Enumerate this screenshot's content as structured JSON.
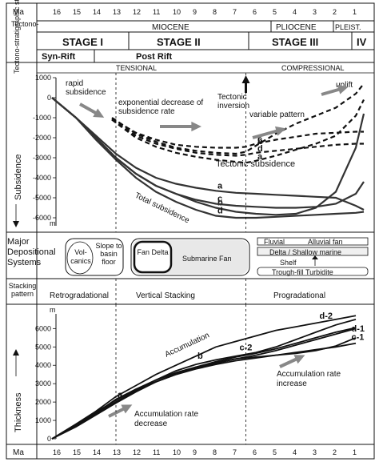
{
  "top": {
    "axis_unit_left": "Ma",
    "ma_ticks": [
      "16",
      "15",
      "14",
      "13",
      "12",
      "11",
      "10",
      "9",
      "8",
      "7",
      "6",
      "5",
      "4",
      "3",
      "2",
      "1"
    ],
    "epochs": [
      "MIOCENE",
      "PLIOCENE",
      "PLEIST."
    ],
    "row_label": "Tectono-stratigraphic stage",
    "stages": [
      "STAGE I",
      "STAGE II",
      "STAGE III",
      "IV"
    ],
    "rift": [
      "Syn-Rift",
      "Post Rift"
    ]
  },
  "subsidence": {
    "ylabel": "Subsidence",
    "unit": "m",
    "regimes": [
      "TENSIONAL",
      "COMPRESSIONAL"
    ],
    "annotations": {
      "rapid": "rapid subsidence",
      "expo": "exponential decrease of subsidence rate",
      "inversion": "Tectonic inversion",
      "variable": "variable pattern",
      "uplift": "uplift",
      "tectonic": "Tectonic subsidence",
      "total": "Total subsidence"
    }
  },
  "depositional": {
    "label": "Major Depositional Systems",
    "volcanics": "Vol-canics",
    "slope": "Slope to basin floor",
    "fan_delta": "Fan Delta",
    "submarine_fan": "Submarine Fan",
    "fluvial": "Fluvial",
    "alluvial": "Alluvial fan",
    "delta": "Delta / Shallow marine",
    "shelf": "Shelf",
    "trough": "Trough-fill Turbidite"
  },
  "stacking": {
    "label": "Stacking pattern",
    "phases": [
      "Retrogradational",
      "Vertical Stacking",
      "Progradational"
    ]
  },
  "thickness": {
    "ylabel": "Thickness",
    "unit": "m",
    "accumulation": "Accumulation",
    "decrease": "Accumulation rate decrease",
    "increase": "Accumulation rate increase"
  },
  "bottom": {
    "axis_unit_left": "Ma"
  },
  "chart_data": [
    {
      "type": "line",
      "title": "",
      "xlabel": "Ma",
      "ylabel": "Subsidence (m)",
      "xlim": [
        16.6,
        0.6
      ],
      "ylim": [
        -6400,
        1000
      ],
      "yticks": [
        1000,
        0,
        -1000,
        -2000,
        -3000,
        -4000,
        -5000,
        -6000
      ],
      "tectonic_series": [
        {
          "name": "a",
          "x": [
            13.2,
            12,
            11,
            10,
            9,
            8,
            7,
            6.5,
            6,
            5,
            4,
            3,
            2,
            1,
            0.6
          ],
          "y": [
            -1100,
            -2000,
            -2450,
            -2750,
            -2950,
            -3100,
            -3200,
            -3250,
            -3150,
            -2900,
            -2600,
            -2300,
            -1900,
            -900,
            -100
          ]
        },
        {
          "name": "b",
          "x": [
            13.2,
            12,
            11,
            10,
            9,
            8,
            7,
            6.5,
            6,
            5,
            4,
            3,
            2,
            1,
            0.6
          ],
          "y": [
            -1000,
            -1800,
            -2200,
            -2500,
            -2650,
            -2750,
            -2800,
            -2700,
            -2400,
            -1800,
            -1300,
            -900,
            -500,
            200,
            700
          ]
        },
        {
          "name": "c",
          "x": [
            13.2,
            12,
            11,
            10,
            9,
            8,
            7,
            6.5,
            6,
            5,
            4,
            3,
            2,
            1,
            0.6
          ],
          "y": [
            -1050,
            -1750,
            -2100,
            -2350,
            -2450,
            -2500,
            -2500,
            -2450,
            -2300,
            -2100,
            -1950,
            -1800,
            -1750,
            -1700,
            -1700
          ]
        },
        {
          "name": "d",
          "x": [
            13.2,
            12,
            11,
            10,
            9,
            8,
            7,
            6.5,
            6,
            5,
            4,
            3,
            2,
            1,
            0.6
          ],
          "y": [
            -1100,
            -1900,
            -2300,
            -2550,
            -2750,
            -2850,
            -2900,
            -2850,
            -2750,
            -2650,
            -2550,
            -2450,
            -2350,
            -2300,
            -2300
          ]
        }
      ],
      "total_series": [
        {
          "name": "a",
          "x": [
            16.2,
            15,
            14,
            13,
            12,
            11,
            10,
            9,
            8,
            7,
            6,
            5,
            4,
            3,
            2,
            1,
            0.6
          ],
          "y": [
            0,
            -1000,
            -1900,
            -2800,
            -3500,
            -4000,
            -4300,
            -4500,
            -4650,
            -4750,
            -4800,
            -4850,
            -4900,
            -4950,
            -5000,
            -5400,
            -5600
          ]
        },
        {
          "name": "b",
          "x": [
            16.2,
            15,
            14,
            13,
            12,
            11,
            10,
            9,
            8,
            7,
            6,
            5,
            4,
            3,
            2,
            1,
            0.6
          ],
          "y": [
            0,
            -1000,
            -2000,
            -3000,
            -3800,
            -4400,
            -4800,
            -5200,
            -5500,
            -5700,
            -5800,
            -5850,
            -5800,
            -5500,
            -4700,
            -2500,
            -800
          ]
        },
        {
          "name": "c",
          "x": [
            16.2,
            15,
            14,
            13,
            12,
            11,
            10,
            9,
            8,
            7,
            6,
            5,
            4,
            3,
            2,
            1,
            0.6
          ],
          "y": [
            0,
            -1000,
            -2000,
            -3000,
            -3800,
            -4400,
            -4800,
            -5100,
            -5300,
            -5400,
            -5450,
            -5500,
            -5500,
            -5450,
            -5300,
            -4800,
            -4200
          ]
        },
        {
          "name": "d",
          "x": [
            16.2,
            15,
            14,
            13,
            12,
            11,
            10,
            9,
            8,
            7,
            6,
            5,
            4,
            3,
            2,
            1,
            0.6
          ],
          "y": [
            0,
            -1000,
            -2100,
            -3100,
            -4000,
            -4700,
            -5200,
            -5600,
            -5900,
            -6000,
            -6000,
            -5950,
            -5900,
            -5850,
            -5800,
            -5750,
            -5700
          ]
        }
      ]
    },
    {
      "type": "line",
      "title": "",
      "xlabel": "Ma",
      "ylabel": "Thickness (m)",
      "xlim": [
        16.6,
        0.6
      ],
      "ylim": [
        0,
        6800
      ],
      "yticks": [
        0,
        1000,
        2000,
        3000,
        4000,
        5000,
        6000
      ],
      "series": [
        {
          "name": "a",
          "x": [
            16.2,
            15,
            14,
            13,
            12,
            11,
            10,
            9,
            8,
            7,
            6,
            5,
            4,
            3,
            2,
            1
          ],
          "y": [
            0,
            700,
            1400,
            2150,
            2700,
            3100,
            3500,
            3850,
            4100,
            4350,
            4550,
            4800,
            5100,
            5400,
            5700,
            6000
          ]
        },
        {
          "name": "b",
          "x": [
            16.2,
            15,
            14,
            13,
            12,
            11,
            10,
            9,
            8,
            7,
            6,
            5,
            4,
            3,
            2,
            1
          ],
          "y": [
            0,
            800,
            1500,
            2300,
            2900,
            3500,
            4000,
            4500,
            5000,
            5300,
            5600,
            5900,
            6100,
            6300,
            6500,
            6700
          ]
        },
        {
          "name": "c-1",
          "x": [
            16.2,
            15,
            14,
            13,
            12,
            11,
            10,
            9,
            8,
            7,
            6,
            5,
            4,
            3,
            2,
            1
          ],
          "y": [
            0,
            750,
            1400,
            2000,
            2600,
            3100,
            3500,
            3800,
            4050,
            4250,
            4400,
            4550,
            4700,
            4850,
            5000,
            5200
          ]
        },
        {
          "name": "c-2",
          "x": [
            16.2,
            15,
            14,
            13,
            12,
            11,
            10,
            9,
            8,
            7,
            6,
            5,
            4,
            3,
            2,
            1
          ],
          "y": [
            0,
            750,
            1450,
            2100,
            2700,
            3200,
            3600,
            3900,
            4200,
            4450,
            4650,
            4900,
            5200,
            5500,
            5800,
            6050
          ]
        },
        {
          "name": "d-1",
          "x": [
            16.2,
            15,
            14,
            13,
            12,
            11,
            10,
            9,
            8,
            7,
            6,
            5,
            4,
            3,
            2,
            1
          ],
          "y": [
            0,
            650,
            1300,
            1950,
            2550,
            3100,
            3550,
            3900,
            4150,
            4350,
            4450,
            4550,
            4650,
            4800,
            5050,
            5500
          ]
        },
        {
          "name": "d-2",
          "x": [
            16.2,
            15,
            14,
            13,
            12,
            11,
            10,
            9,
            8,
            7,
            6,
            5,
            4,
            3,
            2,
            1
          ],
          "y": [
            0,
            700,
            1350,
            2000,
            2650,
            3200,
            3700,
            4050,
            4300,
            4500,
            4700,
            5000,
            5400,
            5800,
            6200,
            6500
          ]
        }
      ]
    }
  ]
}
